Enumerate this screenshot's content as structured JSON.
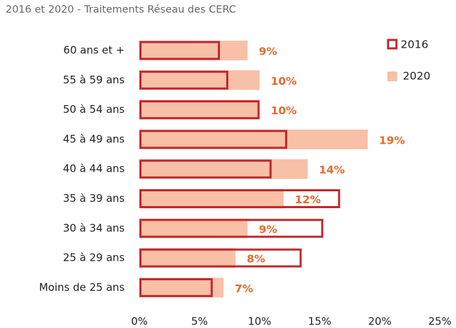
{
  "chart_data": {
    "type": "hbar",
    "title": "2016 et 2020 - Traitements Réseau des CERC",
    "categories": [
      "60 ans et +",
      "55 à 59 ans",
      "50 à 54 ans",
      "45 à 49 ans",
      "40 à 44 ans",
      "35 à 39 ans",
      "30 à 34 ans",
      "25 à 29 ans",
      "Moins de 25 ans"
    ],
    "series": [
      {
        "name": "2016",
        "color": "#c0282d",
        "values": [
          6.7,
          7.4,
          10.0,
          12.3,
          11.0,
          16.7,
          15.3,
          13.5,
          6.1
        ]
      },
      {
        "name": "2020",
        "color": "#f8c0a6",
        "values": [
          9,
          10,
          10,
          19,
          14,
          12,
          9,
          8,
          7
        ],
        "value_labels": [
          "9%",
          "10%",
          "10%",
          "19%",
          "14%",
          "12%",
          "9%",
          "8%",
          "7%"
        ],
        "label_color": "#e8692a"
      }
    ],
    "xlim": [
      0,
      25
    ],
    "xticks": [
      {
        "value": 0,
        "label": "0%"
      },
      {
        "value": 5,
        "label": "5%"
      },
      {
        "value": 10,
        "label": "10%"
      },
      {
        "value": 15,
        "label": "15%"
      },
      {
        "value": 20,
        "label": "20%"
      },
      {
        "value": 25,
        "label": "25%"
      }
    ],
    "legend": "top-right"
  }
}
